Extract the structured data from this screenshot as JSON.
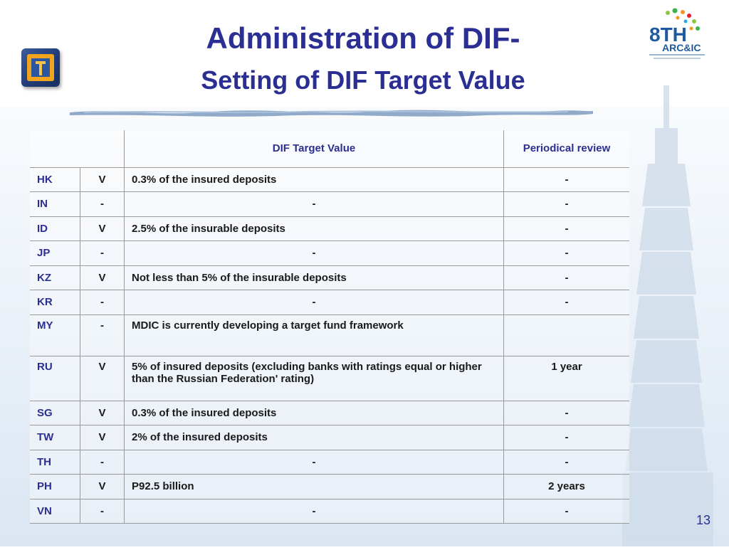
{
  "title_line1": "Administration of DIF-",
  "title_line2": "Setting of DIF Target Value",
  "logo_right_text": {
    "big": "8TH",
    "sub": "ARC&IC"
  },
  "table": {
    "headers": {
      "value": "DIF Target Value",
      "review": "Periodical review"
    },
    "rows": [
      {
        "country": "HK",
        "flag": "V",
        "value": "0.3% of the insured deposits",
        "review": "-"
      },
      {
        "country": "IN",
        "flag": "-",
        "value": "-",
        "review": "-"
      },
      {
        "country": "ID",
        "flag": "V",
        "value": "2.5% of the insurable deposits",
        "review": "-"
      },
      {
        "country": "JP",
        "flag": "-",
        "value": "-",
        "review": "-"
      },
      {
        "country": "KZ",
        "flag": "V",
        "value": "Not less than 5% of the insurable deposits",
        "review": "-"
      },
      {
        "country": "KR",
        "flag": "-",
        "value": "-",
        "review": "-"
      },
      {
        "country": "MY",
        "flag": "-",
        "value": "MDIC is currently developing a target fund framework",
        "review": ""
      },
      {
        "country": "RU",
        "flag": "V",
        "value": "5% of insured deposits (excluding banks with ratings equal or higher than the Russian Federation' rating)",
        "review": "1 year"
      },
      {
        "country": "SG",
        "flag": "V",
        "value": "0.3% of the insured deposits",
        "review": "-"
      },
      {
        "country": "TW",
        "flag": "V",
        "value": "2% of the insured deposits",
        "review": "-"
      },
      {
        "country": "TH",
        "flag": "-",
        "value": "-",
        "review": "-"
      },
      {
        "country": "PH",
        "flag": "V",
        "value": "P92.5 billion",
        "review": "2 years"
      },
      {
        "country": "VN",
        "flag": "-",
        "value": "-",
        "review": "-"
      }
    ]
  },
  "page_number": "13",
  "colors": {
    "title": "#2b2e92",
    "text": "#1a1a1a",
    "grid": "#9a9a9a"
  }
}
